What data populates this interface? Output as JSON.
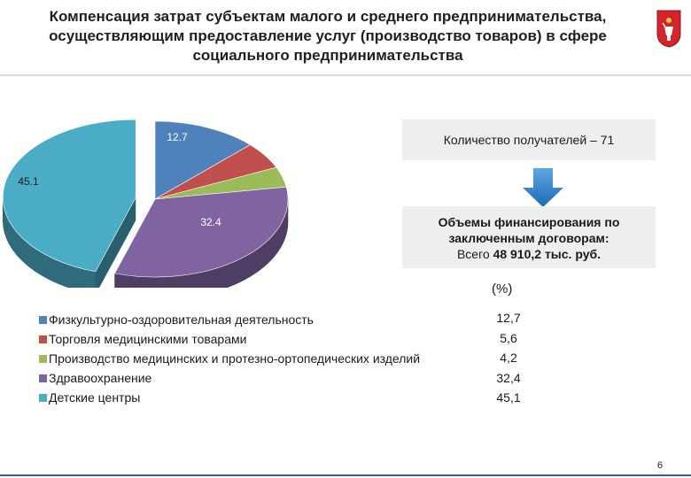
{
  "title": "Компенсация затрат субъектам малого и среднего предпринимательства, осуществляющим предоставление услуг (производство товаров) в сфере социального предпринимательства",
  "recipients_box": {
    "text": "Количество получателей – 71"
  },
  "financing_box": {
    "line1": "Объемы финансирования по",
    "line2": "заключенным договорам:",
    "line3_prefix": "Всего",
    "line3_amount": "48 910,2 тыс. руб."
  },
  "pct_header": "(%)",
  "page_number": "6",
  "chart_data": {
    "type": "pie",
    "style": "3d-exploded",
    "categories": [
      "Физкультурно-оздоровительная деятельность",
      "Торговля медицинскими товарами",
      "Производство медицинских и протезно-ортопедических изделий",
      "Здравоохранение",
      "Детские центры"
    ],
    "values": [
      12.7,
      5.6,
      4.2,
      32.4,
      45.1
    ],
    "value_labels": [
      "12,7",
      "5,6",
      "4,2",
      "32,4",
      "45,1"
    ],
    "slice_labels": [
      "12.7",
      "",
      "",
      "32.4",
      "45.1"
    ],
    "colors": [
      "#4f81bd",
      "#c0504d",
      "#9bbb59",
      "#8064a2",
      "#4bacc6"
    ],
    "legend_position": "bottom-left"
  }
}
